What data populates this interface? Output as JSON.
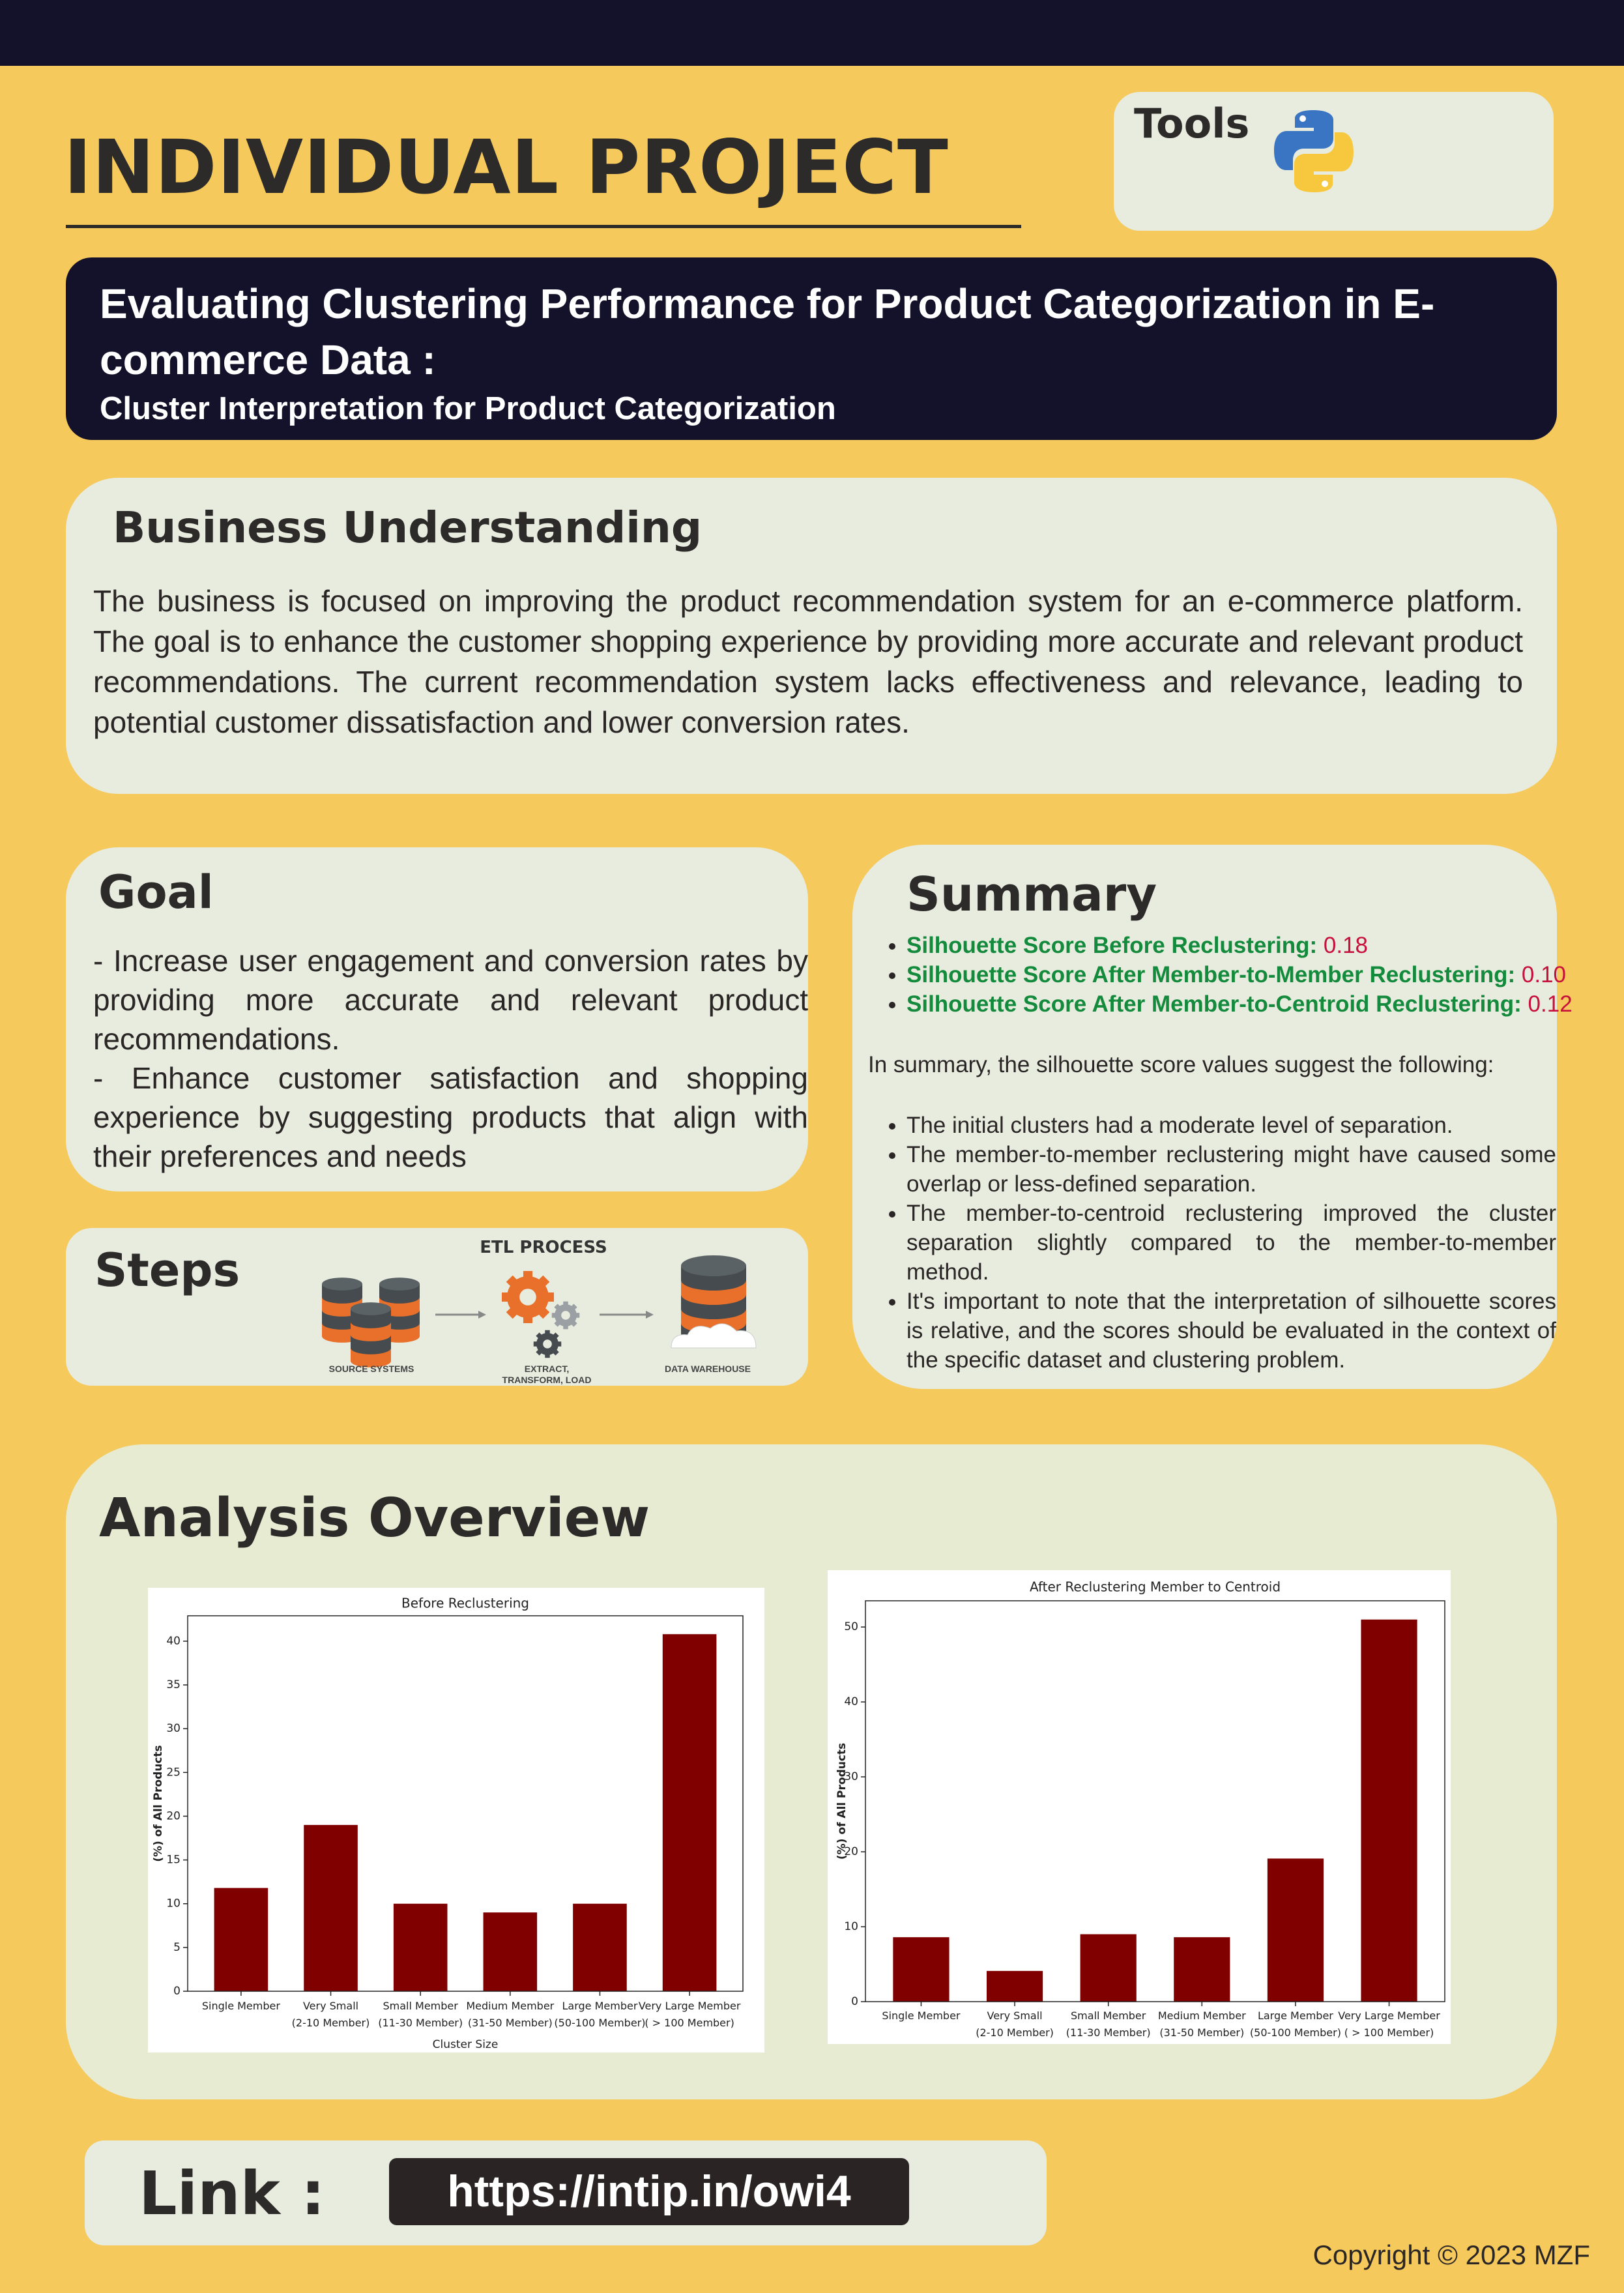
{
  "header": {
    "title": "INDIVIDUAL PROJECT",
    "tools_label": "Tools"
  },
  "banner": {
    "title": "Evaluating Clustering Performance for Product Categorization in E-commerce Data :",
    "subtitle": "Cluster Interpretation for Product Categorization"
  },
  "business": {
    "heading": "Business Understanding",
    "text": "The business is focused on improving the product recommendation system for an e-commerce platform. The goal is to enhance the customer shopping experience by providing more accurate and relevant product recommendations. The current recommendation system lacks effectiveness and relevance, leading to potential customer dissatisfaction and lower conversion rates."
  },
  "goal": {
    "heading": "Goal",
    "items": [
      "- Increase user engagement and conversion rates by providing more accurate and relevant product recommendations.",
      "- Enhance customer satisfaction and shopping experience by suggesting products that align with their preferences and needs"
    ]
  },
  "steps": {
    "heading": "Steps",
    "etl_title": "ETL PROCESS",
    "etl_labels": [
      "SOURCE SYSTEMS",
      "EXTRACT, TRANSFORM, LOAD",
      "DATA WAREHOUSE"
    ]
  },
  "summary": {
    "heading": "Summary",
    "scores": [
      {
        "label": "Silhouette Score Before Reclustering:",
        "value": "0.18"
      },
      {
        "label": "Silhouette Score After Member-to-Member Reclustering:",
        "value": "0.10"
      },
      {
        "label": "Silhouette Score After Member-to-Centroid Reclustering:",
        "value": "0.12"
      }
    ],
    "intro": "In summary, the silhouette score values suggest the following:",
    "points": [
      "The initial clusters had a moderate level of separation.",
      "The member-to-member reclustering might have caused some overlap or less-defined separation.",
      "The member-to-centroid reclustering improved the cluster separation slightly compared to the member-to-member method.",
      "It's important to note that the interpretation of silhouette scores is relative, and the scores should be evaluated in the context of the specific dataset and clustering problem."
    ]
  },
  "analysis": {
    "heading": "Analysis Overview"
  },
  "chart_data": [
    {
      "type": "bar",
      "title": "Before Reclustering",
      "categories": [
        [
          "Single Member"
        ],
        [
          "Very Small",
          "(2-10 Member)"
        ],
        [
          "Small Member",
          "(11-30 Member)"
        ],
        [
          "Medium Member",
          "(31-50 Member)"
        ],
        [
          "Large Member",
          "(50-100 Member)"
        ],
        [
          "Very Large Member",
          "( > 100 Member)"
        ]
      ],
      "values": [
        11.8,
        19,
        10,
        9,
        10,
        40.8
      ],
      "color": "#800000",
      "xlabel": "Cluster Size",
      "ylabel": "(%) of All Products",
      "ylim": [
        0,
        42.9
      ],
      "yticks": [
        0,
        5,
        10,
        15,
        20,
        25,
        30,
        35,
        40
      ]
    },
    {
      "type": "bar",
      "title": "After Reclustering Member to Centroid",
      "categories": [
        [
          "Single Member"
        ],
        [
          "Very Small",
          "(2-10 Member)"
        ],
        [
          "Small Member",
          "(11-30 Member)"
        ],
        [
          "Medium Member",
          "(31-50 Member)"
        ],
        [
          "Large Member",
          "(50-100 Member)"
        ],
        [
          "Very Large Member",
          "( > 100 Member)"
        ]
      ],
      "values": [
        8.6,
        4.1,
        9.0,
        8.6,
        19.1,
        51.0
      ],
      "color": "#800000",
      "ylabel": "(%) of All Products",
      "ylim": [
        0,
        53.5
      ],
      "yticks": [
        0,
        10,
        20,
        30,
        40,
        50
      ]
    }
  ],
  "link": {
    "label": "Link :",
    "url": "https://intip.in/owi4"
  },
  "copyright": "Copyright © 2023 MZF"
}
